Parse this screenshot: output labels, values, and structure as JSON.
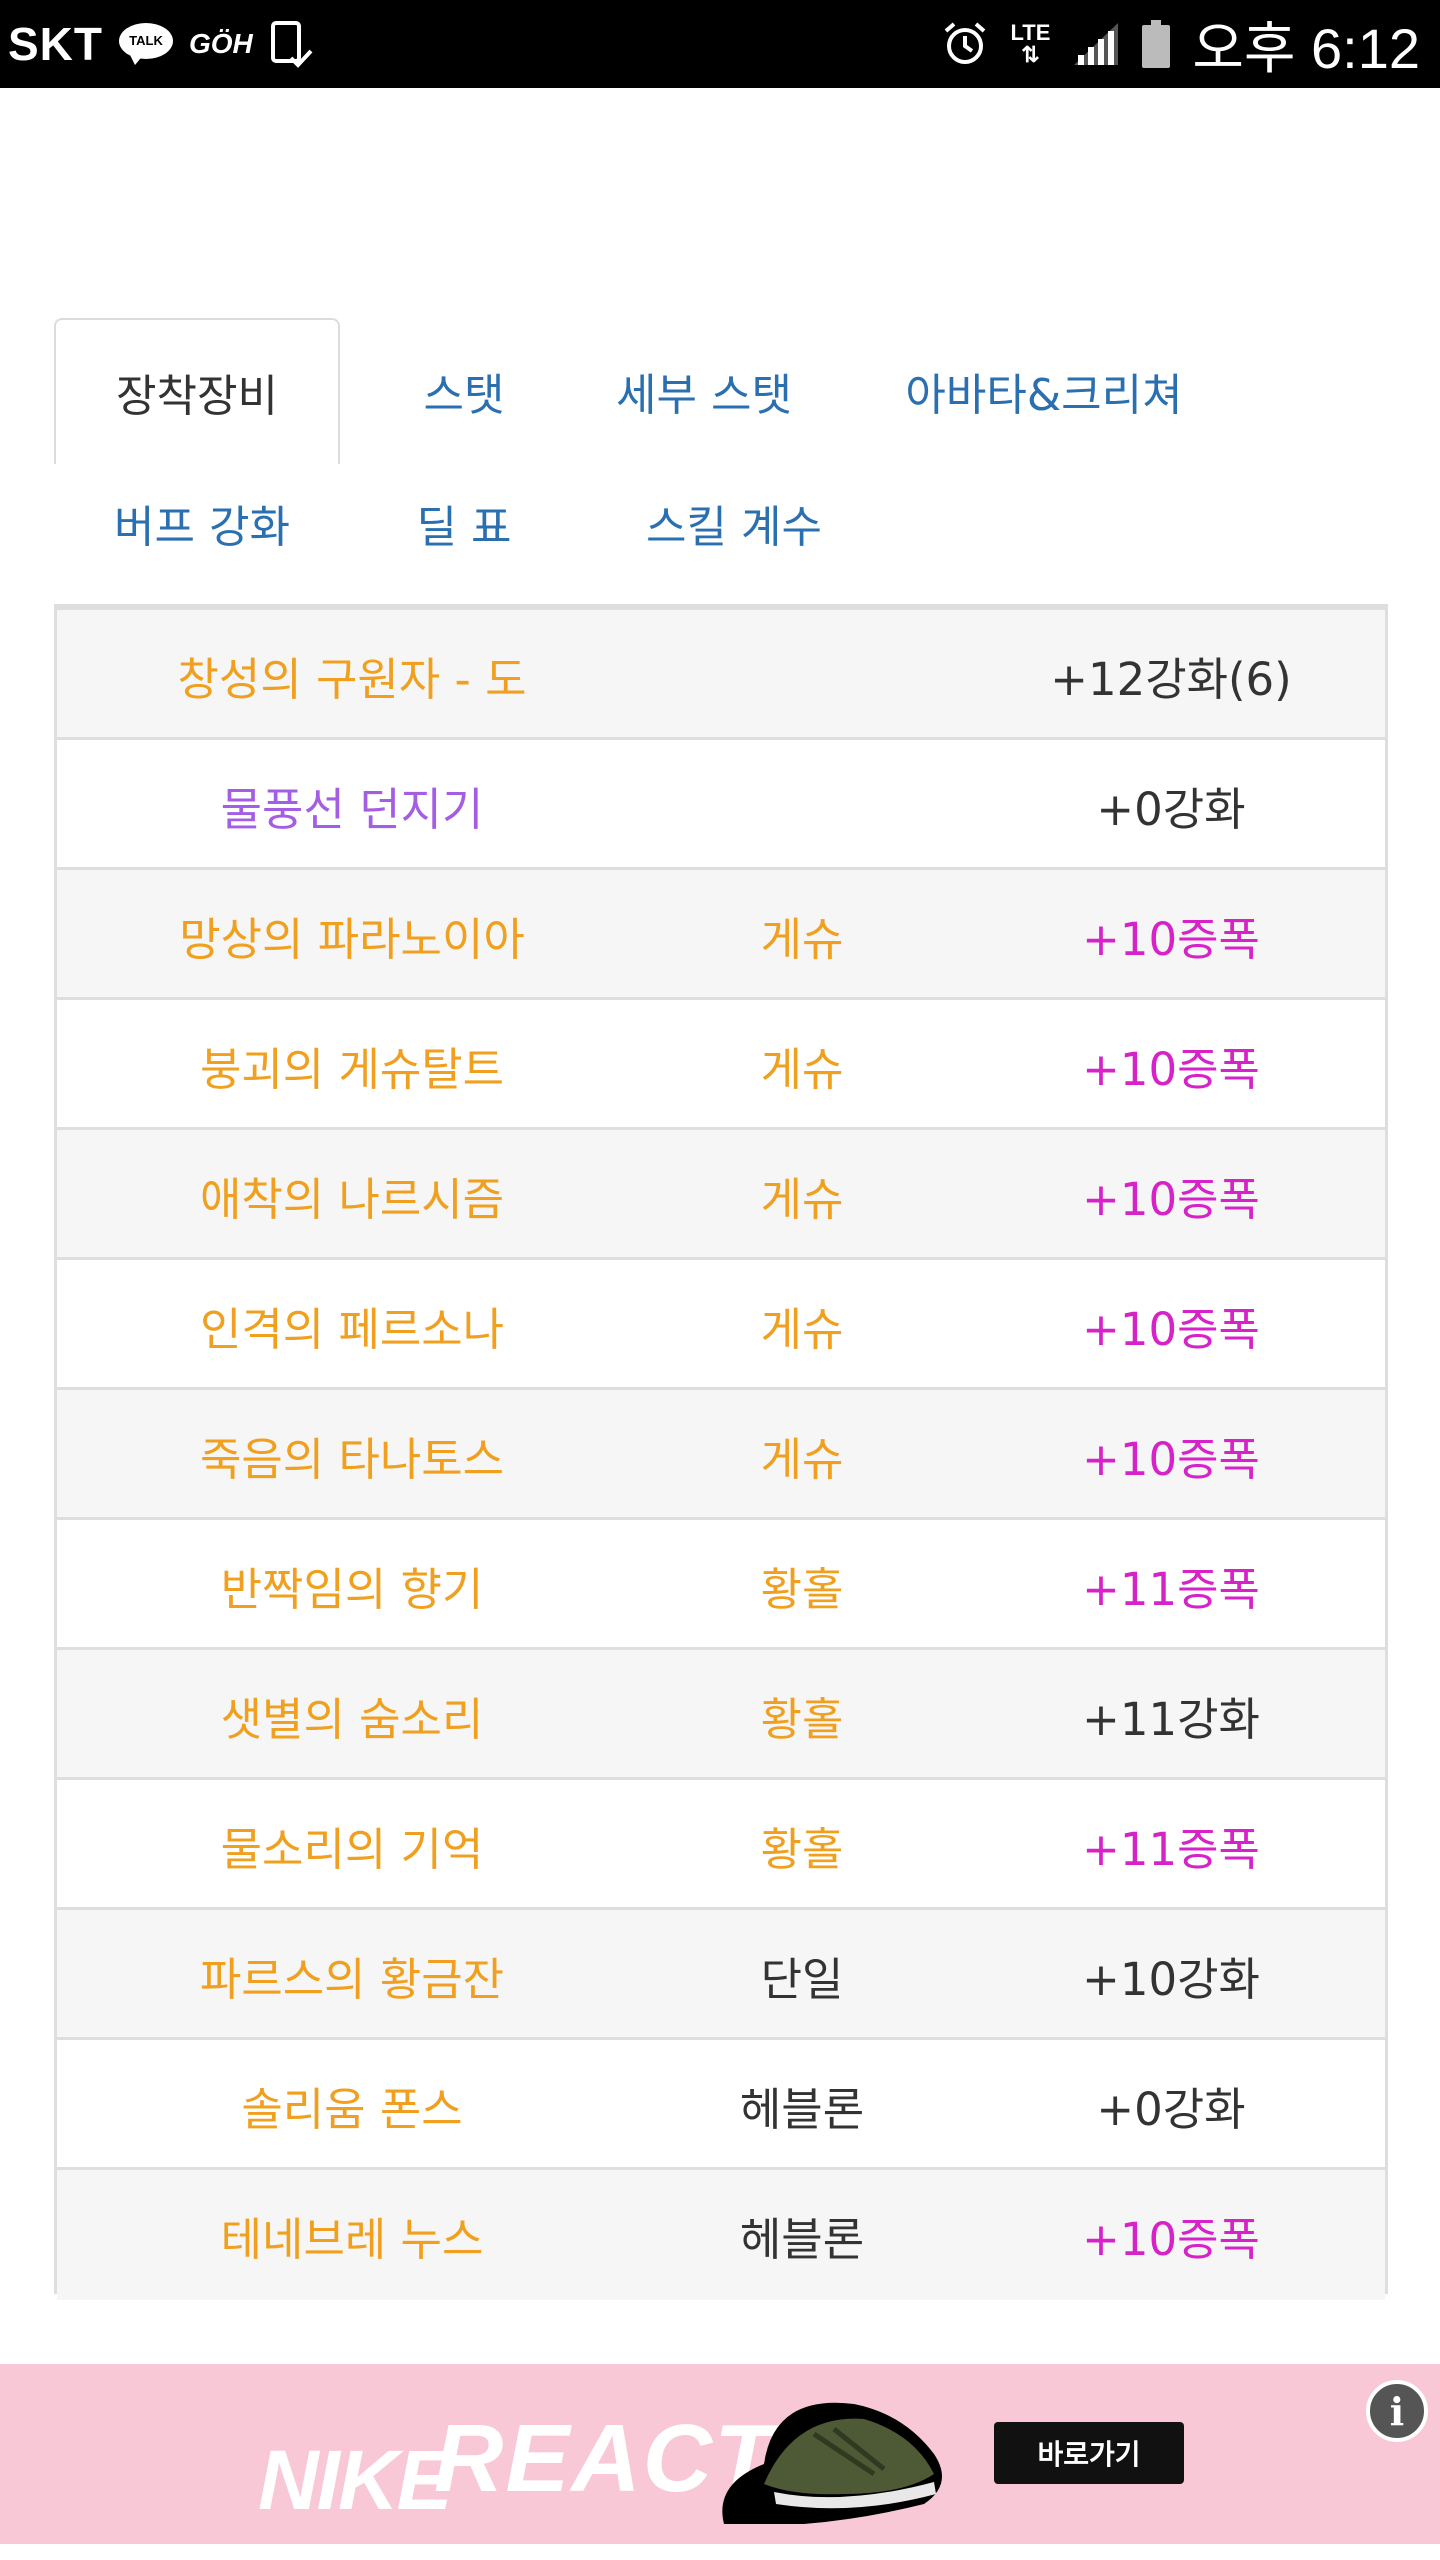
{
  "status_bar": {
    "carrier": "SKT",
    "talk_badge": "TALK",
    "goh_label": "GÖH",
    "network": "LTE",
    "time": "오후 6:12",
    "icons": [
      "kakaotalk-icon",
      "goh-icon",
      "phone-check-icon",
      "alarm-icon",
      "lte-icon",
      "signal-icon",
      "battery-icon"
    ]
  },
  "tabs": [
    {
      "label": "장착장비",
      "active": true
    },
    {
      "label": "스탯",
      "active": false
    },
    {
      "label": "세부 스탯",
      "active": false
    },
    {
      "label": "아바타&크리쳐",
      "active": false
    },
    {
      "label": "버프 강화",
      "active": false
    },
    {
      "label": "딜 표",
      "active": false
    },
    {
      "label": "스킬 계수",
      "active": false
    }
  ],
  "colors": {
    "item_orange": "#f0a01e",
    "item_purple": "#a45ee5",
    "amp_magenta": "#d622c8",
    "plain_text": "#333333",
    "tab_blue": "#2a6fb0"
  },
  "equipment": [
    {
      "name": "창성의 구원자 - 도",
      "set": "",
      "upgrade": "+12강화(6)",
      "name_color": "orange",
      "set_color": "plain",
      "upgrade_color": "plain"
    },
    {
      "name": "물풍선 던지기",
      "set": "",
      "upgrade": "+0강화",
      "name_color": "purple",
      "set_color": "plain",
      "upgrade_color": "plain"
    },
    {
      "name": "망상의 파라노이아",
      "set": "게슈",
      "upgrade": "+10증폭",
      "name_color": "orange",
      "set_color": "orange",
      "upgrade_color": "magenta"
    },
    {
      "name": "붕괴의 게슈탈트",
      "set": "게슈",
      "upgrade": "+10증폭",
      "name_color": "orange",
      "set_color": "orange",
      "upgrade_color": "magenta"
    },
    {
      "name": "애착의 나르시즘",
      "set": "게슈",
      "upgrade": "+10증폭",
      "name_color": "orange",
      "set_color": "orange",
      "upgrade_color": "magenta"
    },
    {
      "name": "인격의 페르소나",
      "set": "게슈",
      "upgrade": "+10증폭",
      "name_color": "orange",
      "set_color": "orange",
      "upgrade_color": "magenta"
    },
    {
      "name": "죽음의 타나토스",
      "set": "게슈",
      "upgrade": "+10증폭",
      "name_color": "orange",
      "set_color": "orange",
      "upgrade_color": "magenta"
    },
    {
      "name": "반짝임의 향기",
      "set": "황홀",
      "upgrade": "+11증폭",
      "name_color": "orange",
      "set_color": "orange",
      "upgrade_color": "magenta"
    },
    {
      "name": "샛별의 숨소리",
      "set": "황홀",
      "upgrade": "+11강화",
      "name_color": "orange",
      "set_color": "orange",
      "upgrade_color": "plain"
    },
    {
      "name": "물소리의 기억",
      "set": "황홀",
      "upgrade": "+11증폭",
      "name_color": "orange",
      "set_color": "orange",
      "upgrade_color": "magenta"
    },
    {
      "name": "파르스의 황금잔",
      "set": "단일",
      "upgrade": "+10강화",
      "name_color": "orange",
      "set_color": "plain",
      "upgrade_color": "plain"
    },
    {
      "name": "솔리움 폰스",
      "set": "헤블론",
      "upgrade": "+0강화",
      "name_color": "orange",
      "set_color": "plain",
      "upgrade_color": "plain"
    },
    {
      "name": "테네브레 누스",
      "set": "헤블론",
      "upgrade": "+10증폭",
      "name_color": "orange",
      "set_color": "plain",
      "upgrade_color": "magenta"
    }
  ],
  "ad": {
    "brand": "NIKE",
    "product": "REACT",
    "button_label": "바로가기",
    "info_glyph": "i"
  }
}
